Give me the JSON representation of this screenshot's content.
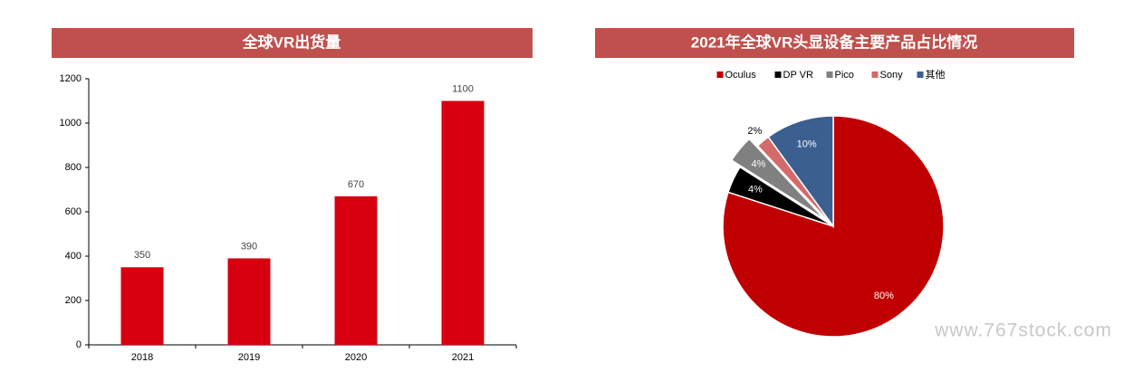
{
  "chart_data": [
    {
      "type": "bar",
      "title": "全球VR出货量",
      "categories": [
        "2018",
        "2019",
        "2020",
        "2021"
      ],
      "values": [
        350,
        390,
        670,
        1100
      ],
      "color": "#d7000f",
      "ylim": [
        0,
        1200
      ],
      "yticks": [
        0,
        200,
        400,
        600,
        800,
        1000,
        1200
      ],
      "grid": false
    },
    {
      "type": "pie",
      "title": "2021年全球VR头显设备主要产品占比情况",
      "categories": [
        "Oculus",
        "DP VR",
        "Pico",
        "Sony",
        "其他"
      ],
      "values": [
        80,
        4,
        4,
        2,
        10
      ],
      "value_labels": [
        "80%",
        "4%",
        "4%",
        "2%",
        "10%"
      ],
      "colors": [
        "#c00000",
        "#000000",
        "#808080",
        "#d46a6a",
        "#3b5f8e"
      ],
      "legend": "top"
    }
  ],
  "watermark": "www.767stock.com"
}
